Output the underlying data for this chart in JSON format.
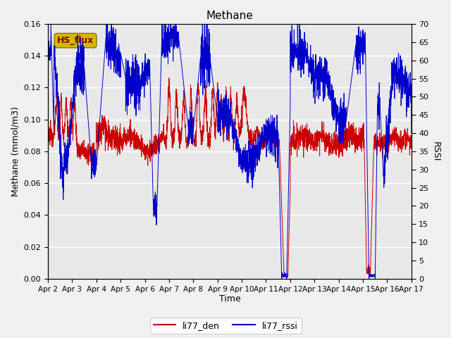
{
  "title": "Methane",
  "xlabel": "Time",
  "ylabel_left": "Methane (mmol/m3)",
  "ylabel_right": "RSSI",
  "annotation_text": "HS_flux",
  "annotation_bg": "#d4b800",
  "annotation_border": "#8B7000",
  "left_ylim": [
    0.0,
    0.16
  ],
  "right_ylim": [
    0,
    70
  ],
  "left_yticks": [
    0.0,
    0.02,
    0.04,
    0.06,
    0.08,
    0.1,
    0.12,
    0.14,
    0.16
  ],
  "right_yticks": [
    0,
    5,
    10,
    15,
    20,
    25,
    30,
    35,
    40,
    45,
    50,
    55,
    60,
    65,
    70
  ],
  "xtick_labels": [
    "Apr 2",
    "Apr 3",
    "Apr 4",
    "Apr 5",
    "Apr 6",
    "Apr 7",
    "Apr 8",
    "Apr 9",
    "Apr 10",
    "Apr 11",
    "Apr 12",
    "Apr 13",
    "Apr 14",
    "Apr 15",
    "Apr 16",
    "Apr 17"
  ],
  "line_red_label": "li77_den",
  "line_blue_label": "li77_rssi",
  "line_red_color": "#cc0000",
  "line_blue_color": "#0000cc",
  "bg_color": "#e8e8e8",
  "fig_bg_color": "#f0f0f0",
  "grid_color": "#ffffff",
  "num_days": 15
}
